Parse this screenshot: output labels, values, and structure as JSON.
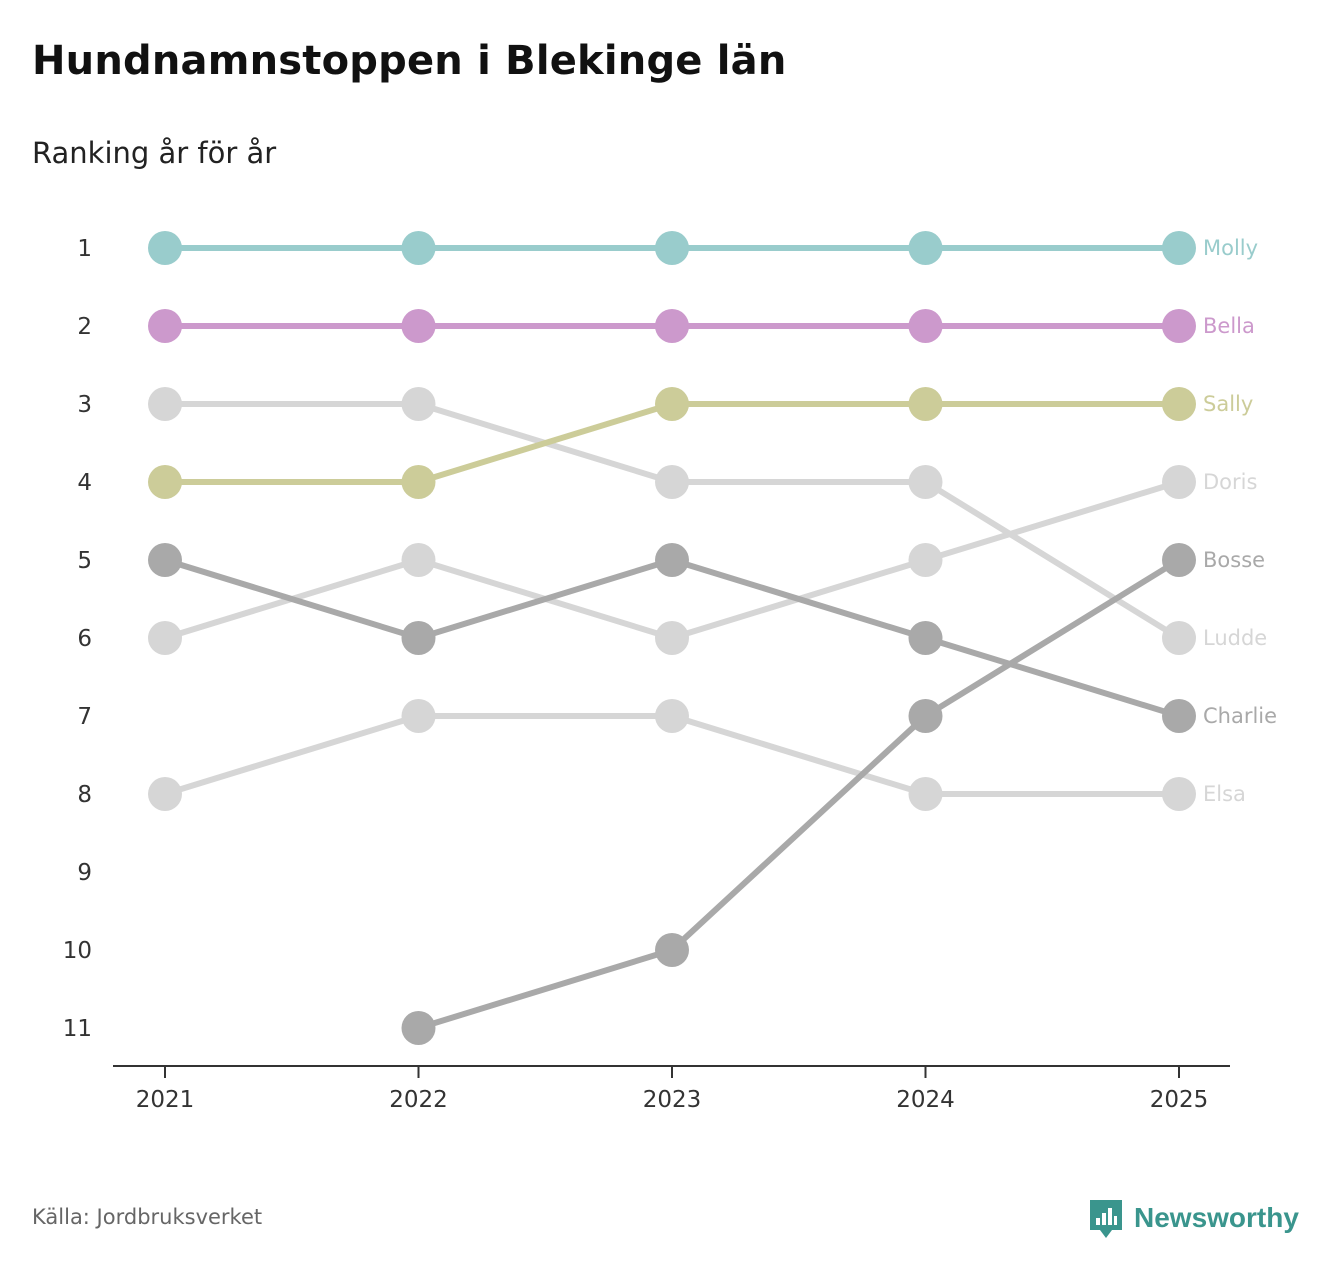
{
  "title": "Hundnamnstoppen i Blekinge län",
  "subtitle": "Ranking år för år",
  "source": "Källa: Jordbruksverket",
  "brand": "Newsworthy",
  "brand_color": "#3a958d",
  "chart_data": {
    "type": "line",
    "title": "Hundnamnstoppen i Blekinge län",
    "subtitle": "Ranking år för år",
    "x": [
      "2021",
      "2022",
      "2023",
      "2024",
      "2025"
    ],
    "y_ticks": [
      1,
      2,
      3,
      4,
      5,
      6,
      7,
      8,
      9,
      10,
      11
    ],
    "ylim": [
      1,
      11
    ],
    "y_inverted": true,
    "series": [
      {
        "name": "Elsa",
        "values": [
          8,
          7,
          7,
          8,
          8
        ],
        "color": "#d6d6d6"
      },
      {
        "name": "Ludde",
        "values": [
          3,
          3,
          4,
          4,
          6
        ],
        "color": "#d6d6d6"
      },
      {
        "name": "Doris",
        "values": [
          6,
          5,
          6,
          5,
          4
        ],
        "color": "#d6d6d6"
      },
      {
        "name": "Charlie",
        "values": [
          5,
          6,
          5,
          6,
          7
        ],
        "color": "#a9a9a9"
      },
      {
        "name": "Bosse",
        "values": [
          null,
          11,
          10,
          7,
          5
        ],
        "color": "#a9a9a9"
      },
      {
        "name": "Sally",
        "values": [
          4,
          4,
          3,
          3,
          3
        ],
        "color": "#cccc99"
      },
      {
        "name": "Bella",
        "values": [
          2,
          2,
          2,
          2,
          2
        ],
        "color": "#cc99cc"
      },
      {
        "name": "Molly",
        "values": [
          1,
          1,
          1,
          1,
          1
        ],
        "color": "#99cccc"
      }
    ]
  }
}
